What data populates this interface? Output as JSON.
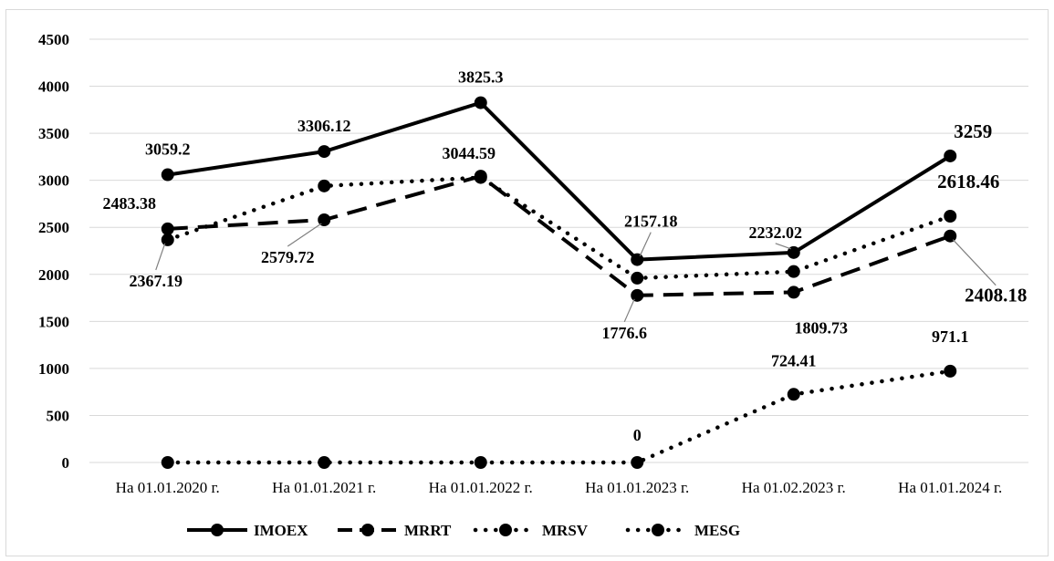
{
  "chart_data": {
    "type": "line",
    "categories": [
      "На 01.01.2020 г.",
      "На 01.01.2021 г.",
      "На 01.01.2022 г.",
      "На 01.01.2023 г.",
      "На 01.02.2023 г.",
      "На 01.01.2024 г."
    ],
    "ylim": [
      0,
      4500
    ],
    "yticks": [
      0,
      500,
      1000,
      1500,
      2000,
      2500,
      3000,
      3500,
      4000,
      4500
    ],
    "grid": true,
    "legend_position": "bottom",
    "series": [
      {
        "name": "IMOEX",
        "style": "solid",
        "color": "#000000",
        "values": [
          3059.2,
          3306.12,
          3825.3,
          2157.18,
          2232.02,
          3259
        ]
      },
      {
        "name": "MRRT",
        "style": "dashed",
        "color": "#000000",
        "values": [
          2483.38,
          2579.72,
          3044.59,
          1776.6,
          1809.73,
          2408.18
        ]
      },
      {
        "name": "MRSV",
        "style": "dotted",
        "color": "#000000",
        "values": [
          2367.19,
          2940,
          3030,
          1960,
          2030,
          2618.46
        ]
      },
      {
        "name": "MESG",
        "style": "dotted",
        "color": "#000000",
        "values": [
          0,
          0,
          0,
          0,
          724.41,
          971.1
        ]
      }
    ],
    "data_labels": [
      {
        "series": "IMOEX",
        "index": 0,
        "text": "3059.2"
      },
      {
        "series": "IMOEX",
        "index": 1,
        "text": "3306.12"
      },
      {
        "series": "IMOEX",
        "index": 2,
        "text": "3825.3"
      },
      {
        "series": "IMOEX",
        "index": 3,
        "text": "2157.18"
      },
      {
        "series": "IMOEX",
        "index": 4,
        "text": "2232.02"
      },
      {
        "series": "IMOEX",
        "index": 5,
        "text": "3259"
      },
      {
        "series": "MRRT",
        "index": 0,
        "text": "2483.38"
      },
      {
        "series": "MRRT",
        "index": 1,
        "text": "2579.72"
      },
      {
        "series": "MRRT",
        "index": 2,
        "text": "3044.59"
      },
      {
        "series": "MRRT",
        "index": 3,
        "text": "1776.6"
      },
      {
        "series": "MRRT",
        "index": 4,
        "text": "1809.73"
      },
      {
        "series": "MRRT",
        "index": 5,
        "text": "2408.18"
      },
      {
        "series": "MRSV",
        "index": 0,
        "text": "2367.19"
      },
      {
        "series": "MRSV",
        "index": 5,
        "text": "2618.46"
      },
      {
        "series": "MESG",
        "index": 3,
        "text": "0"
      },
      {
        "series": "MESG",
        "index": 4,
        "text": "724.41"
      },
      {
        "series": "MESG",
        "index": 5,
        "text": "971.1"
      }
    ]
  }
}
